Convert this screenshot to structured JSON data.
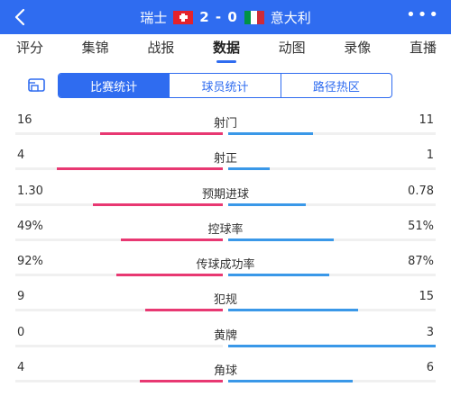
{
  "header": {
    "back_icon": "chevron-left-icon",
    "home_team": "瑞士",
    "away_team": "意大利",
    "score": "2 - 0",
    "home_flag": "switzerland-flag",
    "away_flag": "italy-flag",
    "flag_colors": {
      "ch_red": "#e4222b",
      "it_green": "#009246",
      "it_white": "#ffffff",
      "it_red": "#ce2b37"
    },
    "more_icon": "more-dots-icon",
    "more_label": "•••",
    "bg_color": "#2f6cf0"
  },
  "tabs": [
    {
      "label": "评分",
      "active": false
    },
    {
      "label": "集锦",
      "active": false
    },
    {
      "label": "战报",
      "active": false
    },
    {
      "label": "数据",
      "active": true
    },
    {
      "label": "动图",
      "active": false
    },
    {
      "label": "录像",
      "active": false
    },
    {
      "label": "直播",
      "active": false
    }
  ],
  "segment": {
    "icon": "stats-board-icon",
    "options": [
      {
        "label": "比赛统计",
        "active": true
      },
      {
        "label": "球员统计",
        "active": false
      },
      {
        "label": "路径热区",
        "active": false
      }
    ]
  },
  "colors": {
    "home_bar": "#e83872",
    "away_bar": "#3a98e8",
    "accent": "#2f6cf0"
  },
  "stats": [
    {
      "label": "射门",
      "home": "16",
      "away": "11",
      "home_share": 0.593,
      "away_share": 0.407
    },
    {
      "label": "射正",
      "home": "4",
      "away": "1",
      "home_share": 0.8,
      "away_share": 0.2
    },
    {
      "label": "预期进球",
      "home": "1.30",
      "away": "0.78",
      "home_share": 0.625,
      "away_share": 0.375
    },
    {
      "label": "控球率",
      "home": "49%",
      "away": "51%",
      "home_share": 0.49,
      "away_share": 0.51
    },
    {
      "label": "传球成功率",
      "home": "92%",
      "away": "87%",
      "home_share": 0.514,
      "away_share": 0.486
    },
    {
      "label": "犯规",
      "home": "9",
      "away": "15",
      "home_share": 0.375,
      "away_share": 0.625
    },
    {
      "label": "黄牌",
      "home": "0",
      "away": "3",
      "home_share": 0.0,
      "away_share": 1.0
    },
    {
      "label": "角球",
      "home": "4",
      "away": "6",
      "home_share": 0.4,
      "away_share": 0.6
    }
  ]
}
